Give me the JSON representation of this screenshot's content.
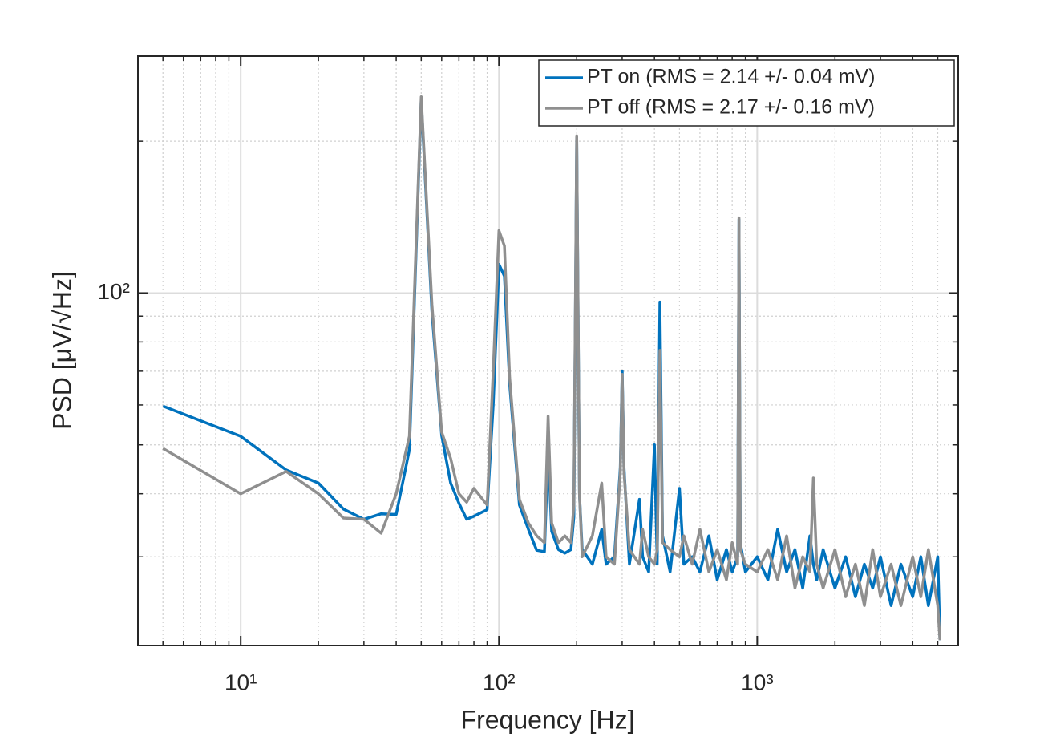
{
  "chart_data": {
    "type": "line",
    "xlabel": "Frequency [Hz]",
    "ylabel": "PSD [μV/√Hz]",
    "xscale": "log",
    "yscale": "log",
    "xlim": [
      4,
      6000
    ],
    "ylim": [
      20,
      295
    ],
    "xticks": [
      {
        "value": 10,
        "label": "10¹"
      },
      {
        "value": 100,
        "label": "10²"
      },
      {
        "value": 1000,
        "label": "10³"
      }
    ],
    "yticks": [
      {
        "value": 100,
        "label": "10²"
      }
    ],
    "xminorticks": [
      5,
      6,
      7,
      8,
      9,
      20,
      30,
      40,
      50,
      60,
      70,
      80,
      90,
      200,
      300,
      400,
      500,
      600,
      700,
      800,
      900,
      2000,
      3000,
      4000,
      5000
    ],
    "yminorticks": [
      30,
      40,
      50,
      60,
      70,
      80,
      90,
      200
    ],
    "grid": true,
    "legend": "northeast",
    "x": [
      5,
      10,
      15,
      20,
      25,
      30,
      35,
      40,
      45,
      50,
      55,
      60,
      65,
      70,
      75,
      80,
      90,
      95,
      100,
      105,
      110,
      120,
      130,
      140,
      150,
      155,
      160,
      170,
      180,
      190,
      195,
      200,
      205,
      210,
      230,
      250,
      260,
      280,
      295,
      300,
      305,
      320,
      350,
      360,
      380,
      400,
      410,
      420,
      430,
      460,
      500,
      520,
      560,
      600,
      650,
      700,
      760,
      800,
      840,
      850,
      860,
      900,
      1000,
      1100,
      1200,
      1300,
      1400,
      1500,
      1600,
      1650,
      1700,
      1800,
      2000,
      2200,
      2400,
      2600,
      2800,
      3000,
      3300,
      3600,
      4000,
      4300,
      4600,
      5000,
      5100
    ],
    "series": [
      {
        "name": "PT on (RMS = 2.14 +/- 0.04 mV)",
        "color": "#0072bd",
        "values": [
          59.7,
          52,
          44.6,
          42,
          37.3,
          35.6,
          36.5,
          36.4,
          48.9,
          242,
          91.9,
          52.2,
          42,
          38.3,
          35.6,
          36.1,
          37.2,
          60,
          114,
          108,
          66,
          38,
          34,
          30.9,
          30.7,
          49,
          33.7,
          31,
          30.5,
          31,
          36,
          204,
          40,
          31,
          29,
          34,
          29,
          30,
          45,
          70,
          45,
          29,
          39,
          30,
          28,
          50,
          29,
          96,
          33,
          28,
          41,
          29,
          30,
          28,
          33,
          27,
          31,
          28,
          30,
          140,
          32,
          28,
          30,
          27,
          34,
          28,
          31,
          26,
          33,
          29,
          27,
          31,
          26,
          30,
          25,
          29,
          26,
          30,
          24,
          29,
          25,
          30,
          24,
          30,
          20.5
        ]
      },
      {
        "name": "PT off (RMS = 2.17 +/- 0.16 mV)",
        "color": "#8f8f8f",
        "values": [
          49.2,
          40,
          44.3,
          40,
          35.8,
          35.6,
          33.4,
          40,
          52,
          245,
          95,
          53,
          47,
          40,
          38.5,
          41,
          38,
          70,
          133,
          124,
          68,
          39,
          35,
          33,
          32,
          57,
          35,
          32,
          33,
          32,
          38,
          205,
          40,
          30,
          33,
          42,
          30,
          29,
          44,
          69,
          44,
          31,
          29,
          34,
          30,
          29,
          31,
          77,
          32,
          31,
          30,
          33,
          29,
          34,
          28,
          31,
          27,
          32,
          29,
          141,
          31,
          29,
          28,
          31,
          27,
          33,
          26,
          30,
          28,
          43,
          29,
          26,
          31,
          25,
          29,
          24,
          31,
          25,
          29,
          24,
          30,
          25,
          31,
          24,
          20.5
        ]
      }
    ]
  }
}
